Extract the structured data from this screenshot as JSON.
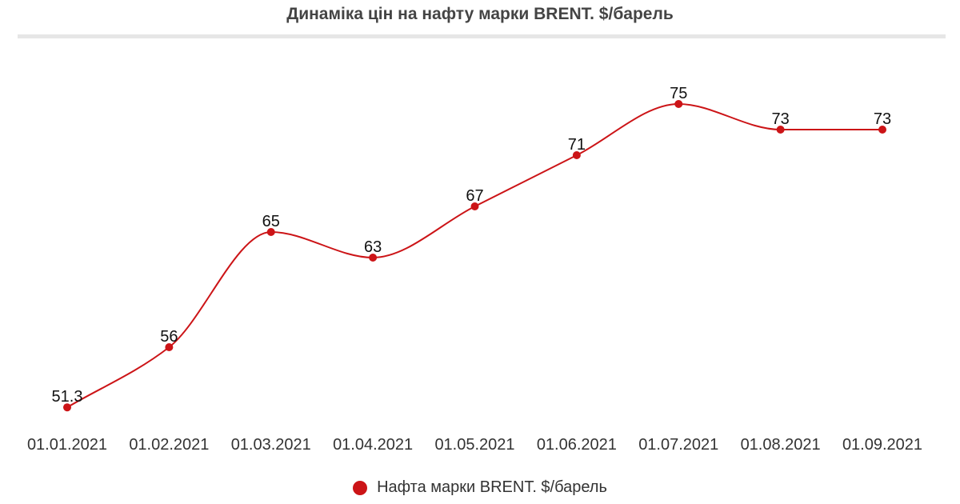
{
  "chart_data": {
    "type": "line",
    "title": "Динаміка цін на нафту марки BRENT. $/барель",
    "categories": [
      "01.01.2021",
      "01.02.2021",
      "01.03.2021",
      "01.04.2021",
      "01.05.2021",
      "01.06.2021",
      "01.07.2021",
      "01.08.2021",
      "01.09.2021"
    ],
    "series": [
      {
        "name": "Нафта марки BRENT. $/барель",
        "values": [
          51.3,
          56,
          65,
          63,
          67,
          71,
          75,
          73,
          73
        ],
        "labels": [
          "51.3",
          "56",
          "65",
          "63",
          "67",
          "71",
          "75",
          "73",
          "73"
        ],
        "color": "#cc1417"
      }
    ],
    "ylim": [
      51,
      75
    ],
    "smooth": true,
    "grid": false,
    "legend": "bottom"
  }
}
